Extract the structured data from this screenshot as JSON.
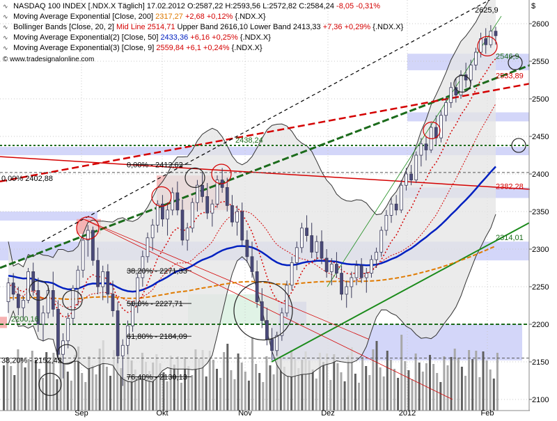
{
  "legend": {
    "instrument": {
      "name": "NASDAQ 100 INDEX [.NDX.X  Täglich]",
      "date": "17.02.2012",
      "ohlc": "O:2587,22 H:2593,56 L:2572,82 C:2584,24",
      "change": "-8,05 -0,31%"
    },
    "studies": [
      {
        "label": "Moving Average Exponential [Close, 200]",
        "value": "2317,27",
        "change": "+2,68 +0,12%",
        "suffix": "{.NDX.X}",
        "color": "#e07a00"
      },
      {
        "label": "Bollinger Bands [Close, 20, 2]",
        "mid": "Mid Line 2514,71",
        "upper": "Upper Band 2616,10",
        "lower": "Lower Band 2413,33",
        "change": "+7,36 +0,29%",
        "suffix": "{.NDX.X}",
        "color": "#d40000"
      },
      {
        "label": "Moving Average Exponential(2) [Close, 50]",
        "value": "2433,36",
        "change": "+6,16 +0,25%",
        "suffix": "{.NDX.X}",
        "color": "#0020c0"
      },
      {
        "label": "Moving Average Exponential(3) [Close, 9]",
        "value": "2559,84",
        "change": "+6,1 +0,24%",
        "suffix": "{.NDX.X}",
        "color": "#d40000"
      }
    ],
    "watermark": "www.tradesignalonline.com"
  },
  "chart_data": {
    "type": "candlestick",
    "currency_label": "$",
    "y_axis": {
      "min": 2100,
      "max": 2625,
      "ticks": [
        2100,
        2150,
        2200,
        2250,
        2300,
        2350,
        2400,
        2450,
        2500,
        2550,
        2600
      ]
    },
    "x_axis": {
      "labels": [
        "Sep",
        "Okt",
        "Nov",
        "Dez",
        "2012",
        "Feb"
      ]
    },
    "grid": true,
    "price_labels": {
      "high": "2625,9",
      "tl_2438": "2438,24",
      "tl_2402": "2402,88",
      "tl_2412": "2412,62",
      "res_2382": "2382,28",
      "ema200_2314": "2314,01",
      "bb_2546": "2546,9",
      "bb_2533": "2533,89",
      "sup_2200": "2200,16"
    },
    "fibonacci": [
      {
        "label": "0,00%",
        "value": "2412,62"
      },
      {
        "label": "38,20%",
        "value": "2271,33"
      },
      {
        "label": "50,0%",
        "value": "2227,71"
      },
      {
        "label": "61,80%",
        "value": "2184,09"
      },
      {
        "label": "76,40%",
        "value": "2130,13"
      },
      {
        "label": "38,20%",
        "value": "2152,42"
      }
    ],
    "fib_left_label": "0,00%",
    "candles": [
      [
        2230,
        2262,
        2215,
        2255
      ],
      [
        2255,
        2268,
        2232,
        2240
      ],
      [
        2240,
        2250,
        2212,
        2222
      ],
      [
        2222,
        2238,
        2205,
        2232
      ],
      [
        2232,
        2275,
        2228,
        2270
      ],
      [
        2270,
        2282,
        2238,
        2245
      ],
      [
        2245,
        2262,
        2190,
        2200
      ],
      [
        2200,
        2225,
        2178,
        2215
      ],
      [
        2215,
        2252,
        2208,
        2245
      ],
      [
        2245,
        2270,
        2210,
        2220
      ],
      [
        2220,
        2232,
        2152,
        2160
      ],
      [
        2160,
        2188,
        2128,
        2178
      ],
      [
        2178,
        2215,
        2168,
        2208
      ],
      [
        2208,
        2252,
        2200,
        2248
      ],
      [
        2248,
        2278,
        2225,
        2272
      ],
      [
        2272,
        2318,
        2262,
        2312
      ],
      [
        2312,
        2332,
        2290,
        2325
      ],
      [
        2325,
        2330,
        2278,
        2285
      ],
      [
        2285,
        2302,
        2240,
        2250
      ],
      [
        2250,
        2278,
        2232,
        2270
      ],
      [
        2270,
        2280,
        2228,
        2240
      ],
      [
        2240,
        2258,
        2210,
        2218
      ],
      [
        2218,
        2230,
        2148,
        2158
      ],
      [
        2158,
        2180,
        2118,
        2172
      ],
      [
        2172,
        2205,
        2160,
        2198
      ],
      [
        2198,
        2230,
        2190,
        2225
      ],
      [
        2225,
        2268,
        2215,
        2262
      ],
      [
        2262,
        2298,
        2250,
        2290
      ],
      [
        2290,
        2322,
        2282,
        2315
      ],
      [
        2315,
        2340,
        2298,
        2332
      ],
      [
        2332,
        2365,
        2322,
        2360
      ],
      [
        2360,
        2372,
        2330,
        2340
      ],
      [
        2340,
        2362,
        2318,
        2352
      ],
      [
        2352,
        2382,
        2345,
        2375
      ],
      [
        2375,
        2390,
        2345,
        2352
      ],
      [
        2352,
        2366,
        2305,
        2312
      ],
      [
        2312,
        2335,
        2298,
        2328
      ],
      [
        2328,
        2368,
        2322,
        2362
      ],
      [
        2362,
        2392,
        2350,
        2385
      ],
      [
        2385,
        2402,
        2362,
        2370
      ],
      [
        2370,
        2388,
        2340,
        2348
      ],
      [
        2348,
        2366,
        2330,
        2360
      ],
      [
        2360,
        2398,
        2355,
        2392
      ],
      [
        2392,
        2408,
        2375,
        2382
      ],
      [
        2382,
        2395,
        2350,
        2358
      ],
      [
        2358,
        2372,
        2330,
        2336
      ],
      [
        2336,
        2358,
        2318,
        2350
      ],
      [
        2350,
        2362,
        2305,
        2312
      ],
      [
        2312,
        2325,
        2282,
        2290
      ],
      [
        2290,
        2310,
        2262,
        2270
      ],
      [
        2270,
        2285,
        2222,
        2230
      ],
      [
        2230,
        2248,
        2195,
        2205
      ],
      [
        2205,
        2222,
        2172,
        2180
      ],
      [
        2180,
        2195,
        2152,
        2165
      ],
      [
        2165,
        2190,
        2158,
        2185
      ],
      [
        2185,
        2222,
        2178,
        2215
      ],
      [
        2215,
        2258,
        2210,
        2252
      ],
      [
        2252,
        2290,
        2245,
        2282
      ],
      [
        2282,
        2310,
        2272,
        2302
      ],
      [
        2302,
        2335,
        2295,
        2328
      ],
      [
        2328,
        2345,
        2310,
        2318
      ],
      [
        2318,
        2335,
        2288,
        2296
      ],
      [
        2296,
        2318,
        2285,
        2310
      ],
      [
        2310,
        2325,
        2280,
        2288
      ],
      [
        2288,
        2300,
        2262,
        2270
      ],
      [
        2270,
        2288,
        2252,
        2280
      ],
      [
        2280,
        2296,
        2262,
        2268
      ],
      [
        2268,
        2278,
        2232,
        2240
      ],
      [
        2240,
        2258,
        2222,
        2250
      ],
      [
        2250,
        2270,
        2235,
        2262
      ],
      [
        2262,
        2285,
        2252,
        2278
      ],
      [
        2278,
        2288,
        2255,
        2262
      ],
      [
        2262,
        2275,
        2242,
        2268
      ],
      [
        2268,
        2292,
        2262,
        2286
      ],
      [
        2286,
        2302,
        2275,
        2296
      ],
      [
        2296,
        2330,
        2290,
        2325
      ],
      [
        2325,
        2352,
        2318,
        2345
      ],
      [
        2345,
        2368,
        2335,
        2360
      ],
      [
        2360,
        2372,
        2345,
        2352
      ],
      [
        2352,
        2392,
        2348,
        2385
      ],
      [
        2385,
        2408,
        2378,
        2400
      ],
      [
        2400,
        2412,
        2385,
        2392
      ],
      [
        2392,
        2430,
        2388,
        2425
      ],
      [
        2425,
        2448,
        2410,
        2440
      ],
      [
        2440,
        2450,
        2418,
        2432
      ],
      [
        2432,
        2468,
        2428,
        2462
      ],
      [
        2462,
        2478,
        2438,
        2448
      ],
      [
        2448,
        2485,
        2442,
        2478
      ],
      [
        2478,
        2502,
        2470,
        2495
      ],
      [
        2495,
        2522,
        2488,
        2515
      ],
      [
        2515,
        2528,
        2495,
        2505
      ],
      [
        2505,
        2538,
        2500,
        2532
      ],
      [
        2532,
        2548,
        2515,
        2525
      ],
      [
        2525,
        2552,
        2520,
        2545
      ],
      [
        2545,
        2568,
        2538,
        2562
      ],
      [
        2562,
        2588,
        2555,
        2580
      ],
      [
        2580,
        2594,
        2560,
        2572
      ],
      [
        2572,
        2598,
        2568,
        2590
      ],
      [
        2590,
        2596,
        2572,
        2584
      ]
    ]
  }
}
